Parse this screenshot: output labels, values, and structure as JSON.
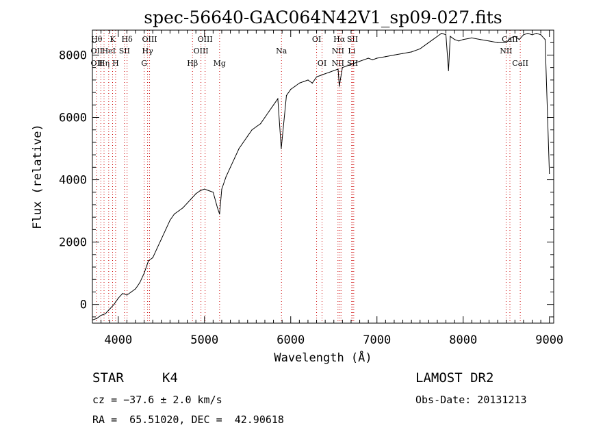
{
  "chart_data": {
    "type": "line",
    "title": "spec-56640-GAC064N42V1_sp09-027.fits",
    "xlabel": "Wavelength (Å)",
    "ylabel": "Flux (relative)",
    "xlim": [
      3700,
      9050
    ],
    "ylim": [
      -600,
      8800
    ],
    "xticks": [
      4000,
      5000,
      6000,
      7000,
      8000,
      9000
    ],
    "yticks": [
      0,
      2000,
      4000,
      6000,
      8000
    ],
    "series": [
      {
        "x": [
          3700,
          3750,
          3800,
          3850,
          3900,
          3950,
          4000,
          4050,
          4100,
          4150,
          4200,
          4250,
          4300,
          4350,
          4400,
          4450,
          4500,
          4550,
          4600,
          4650,
          4700,
          4750,
          4800,
          4850,
          4900,
          4950,
          5000,
          5050,
          5100,
          5150,
          5175,
          5200,
          5250,
          5300,
          5350,
          5400,
          5450,
          5500,
          5550,
          5600,
          5650,
          5700,
          5750,
          5800,
          5850,
          5890,
          5950,
          6000,
          6050,
          6100,
          6150,
          6200,
          6250,
          6300,
          6350,
          6400,
          6450,
          6500,
          6550,
          6563,
          6600,
          6650,
          6700,
          6750,
          6800,
          6850,
          6900,
          6950,
          7000,
          7100,
          7200,
          7300,
          7400,
          7500,
          7600,
          7650,
          7700,
          7750,
          7800,
          7830,
          7850,
          7900,
          7950,
          8000,
          8100,
          8200,
          8300,
          8400,
          8500,
          8550,
          8600,
          8650,
          8700,
          8750,
          8800,
          8850,
          8900,
          8950,
          9000
        ],
        "y": [
          -500,
          -450,
          -350,
          -300,
          -150,
          0,
          200,
          350,
          300,
          400,
          500,
          700,
          1000,
          1400,
          1500,
          1800,
          2100,
          2400,
          2700,
          2900,
          3000,
          3100,
          3250,
          3400,
          3550,
          3650,
          3700,
          3650,
          3600,
          3100,
          2900,
          3700,
          4100,
          4400,
          4700,
          5000,
          5200,
          5400,
          5600,
          5700,
          5800,
          6000,
          6200,
          6400,
          6600,
          5000,
          6700,
          6900,
          7000,
          7100,
          7150,
          7200,
          7100,
          7300,
          7350,
          7400,
          7450,
          7500,
          7550,
          7000,
          7600,
          7650,
          7700,
          7750,
          7800,
          7850,
          7900,
          7850,
          7900,
          7950,
          8000,
          8050,
          8100,
          8200,
          8400,
          8500,
          8600,
          8700,
          8650,
          7500,
          8600,
          8500,
          8450,
          8500,
          8550,
          8500,
          8450,
          8400,
          8400,
          8550,
          8600,
          8500,
          8650,
          8700,
          8650,
          8700,
          8650,
          8500,
          4200
        ]
      }
    ],
    "line_markers": [
      {
        "w": 3750,
        "labels": [
          {
            "t": "Hθ",
            "row": 0
          },
          {
            "t": "OII",
            "row": 1
          },
          {
            "t": "OII",
            "row": 2
          }
        ]
      },
      {
        "w": 3798,
        "labels": []
      },
      {
        "w": 3835,
        "labels": [
          {
            "t": "Hη",
            "row": 2
          }
        ]
      },
      {
        "w": 3889,
        "labels": [
          {
            "t": "HeI",
            "row": 1
          }
        ]
      },
      {
        "w": 3934,
        "labels": [
          {
            "t": "K",
            "row": 0
          }
        ]
      },
      {
        "w": 3969,
        "labels": [
          {
            "t": "H",
            "row": 2
          }
        ]
      },
      {
        "w": 4072,
        "labels": [
          {
            "t": "SII",
            "row": 1
          }
        ]
      },
      {
        "w": 4102,
        "labels": [
          {
            "t": "Hδ",
            "row": 0
          }
        ]
      },
      {
        "w": 4300,
        "labels": [
          {
            "t": "G",
            "row": 2
          }
        ]
      },
      {
        "w": 4340,
        "labels": [
          {
            "t": "Hγ",
            "row": 1
          }
        ]
      },
      {
        "w": 4363,
        "labels": [
          {
            "t": "OIII",
            "row": 0
          }
        ]
      },
      {
        "w": 4861,
        "labels": [
          {
            "t": "Hβ",
            "row": 2
          }
        ]
      },
      {
        "w": 4959,
        "labels": [
          {
            "t": "OIII",
            "row": 1
          }
        ]
      },
      {
        "w": 5007,
        "labels": [
          {
            "t": "OIII",
            "row": 0
          }
        ]
      },
      {
        "w": 5175,
        "labels": [
          {
            "t": "Mg",
            "row": 2
          }
        ]
      },
      {
        "w": 5893,
        "labels": [
          {
            "t": "Na",
            "row": 1
          }
        ]
      },
      {
        "w": 6300,
        "labels": [
          {
            "t": "OI",
            "row": 0
          }
        ]
      },
      {
        "w": 6363,
        "labels": [
          {
            "t": "OI",
            "row": 2
          }
        ]
      },
      {
        "w": 6548,
        "labels": [
          {
            "t": "NII",
            "row": 1
          },
          {
            "t": "NII",
            "row": 2
          }
        ]
      },
      {
        "w": 6563,
        "labels": [
          {
            "t": "Hα",
            "row": 0
          }
        ]
      },
      {
        "w": 6583,
        "labels": []
      },
      {
        "w": 6707,
        "labels": [
          {
            "t": "Li",
            "row": 1
          }
        ]
      },
      {
        "w": 6716,
        "labels": [
          {
            "t": "SII",
            "row": 0
          },
          {
            "t": "SII",
            "row": 2
          }
        ]
      },
      {
        "w": 6731,
        "labels": []
      },
      {
        "w": 8498,
        "labels": [
          {
            "t": "NII",
            "row": 1
          }
        ]
      },
      {
        "w": 8542,
        "labels": [
          {
            "t": "CaII",
            "row": 0
          }
        ]
      },
      {
        "w": 8662,
        "labels": [
          {
            "t": "CaII",
            "row": 2
          }
        ]
      }
    ],
    "grid": false,
    "colors": {
      "spectrum": "#000000",
      "markers": "#cc0000",
      "frame": "#000000"
    }
  },
  "info": {
    "class": "STAR",
    "subclass": "K4",
    "survey": "LAMOST DR2",
    "redshift": "cz = −37.6 ± 2.0 km/s",
    "obs_date": "Obs-Date: 20131213",
    "coords": "RA =  65.51020, DEC =  42.90618"
  }
}
